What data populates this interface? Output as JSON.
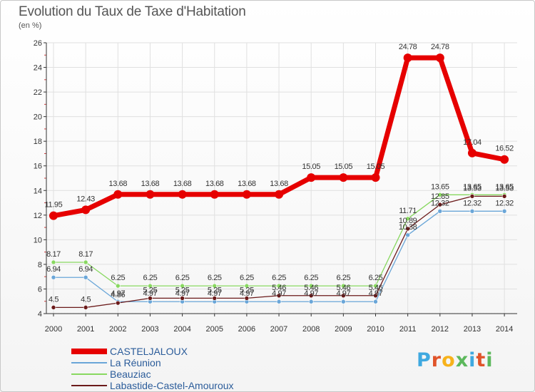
{
  "title": "Evolution du Taux de Taxe d'Habitation",
  "unit_label": "(en %)",
  "logo_text": "Proxiti",
  "colors": {
    "grid": "#e0e0e0",
    "axis": "#333333",
    "tick_text": "#333333"
  },
  "chart_data": {
    "type": "line",
    "title": "Evolution du Taux de Taxe d'Habitation",
    "ylabel": "(en %)",
    "xlabel": "",
    "x": [
      "2000",
      "2001",
      "2002",
      "2003",
      "2004",
      "2005",
      "2006",
      "2007",
      "2008",
      "2009",
      "2010",
      "2011",
      "2012",
      "2013",
      "2014"
    ],
    "ylim": [
      4,
      26
    ],
    "yticks": [
      4,
      6,
      8,
      10,
      12,
      14,
      16,
      18,
      20,
      22,
      24,
      26
    ],
    "grid": true,
    "legend_position": "bottom-left",
    "series": [
      {
        "name": "CASTELJALOUX",
        "color": "#e60000",
        "values": [
          11.95,
          12.43,
          13.68,
          13.68,
          13.68,
          13.68,
          13.68,
          13.68,
          15.05,
          15.05,
          15.05,
          24.78,
          24.78,
          17.04,
          16.52
        ],
        "labels": [
          "11.95",
          "12.43",
          "13.68",
          "13.68",
          "13.68",
          "13.68",
          "13.68",
          "13.68",
          "15.05",
          "15.05",
          "15.05",
          "24.78",
          "24.78",
          "17.04",
          "16.52"
        ]
      },
      {
        "name": "La Réunion",
        "color": "#6aa6d8",
        "values": [
          6.94,
          6.94,
          4.97,
          4.97,
          4.97,
          4.97,
          4.97,
          4.97,
          4.97,
          4.97,
          4.97,
          10.38,
          12.32,
          12.32,
          12.32
        ],
        "labels": [
          "6.94",
          "6.94",
          "4.97",
          "4.97",
          "4.97",
          "4.97",
          "4.97",
          "4.97",
          "4.97",
          "4.97",
          "4.97",
          "10.38",
          "12.32",
          "12.32",
          "12.32"
        ]
      },
      {
        "name": "Beauziac",
        "color": "#88d860",
        "values": [
          8.17,
          8.17,
          6.25,
          6.25,
          6.25,
          6.25,
          6.25,
          6.25,
          6.25,
          6.25,
          6.25,
          11.71,
          13.65,
          13.65,
          13.65
        ],
        "labels": [
          "8.17",
          "8.17",
          "6.25",
          "6.25",
          "6.25",
          "6.25",
          "6.25",
          "6.25",
          "6.25",
          "6.25",
          "6.25",
          "11.71",
          "13.65",
          "13.65",
          "13.65"
        ]
      },
      {
        "name": "Labastide-Castel-Amouroux",
        "color": "#6b1a1a",
        "values": [
          4.5,
          4.5,
          4.86,
          5.25,
          5.25,
          5.25,
          5.25,
          5.46,
          5.46,
          5.46,
          5.46,
          10.89,
          12.85,
          13.53,
          13.53
        ],
        "labels": [
          "4.5",
          "4.5",
          "4.86",
          "5.25",
          "5.25",
          "5.25",
          "5.25",
          "5.46",
          "5.46",
          "5.46",
          "5.46",
          "10.89",
          "12.85",
          "13.53",
          "13.53"
        ]
      }
    ]
  }
}
